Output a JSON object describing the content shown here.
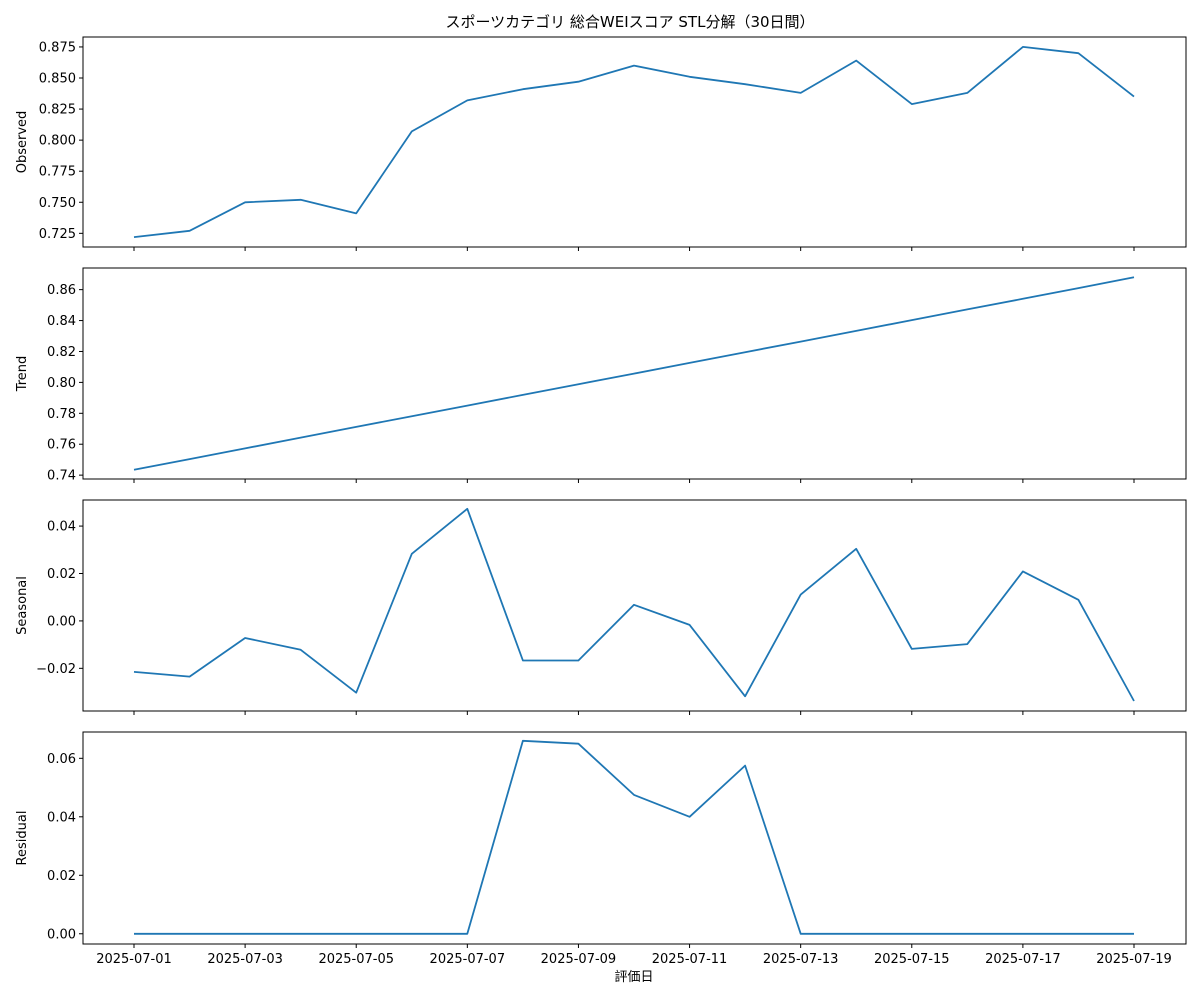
{
  "chart_data": {
    "type": "line",
    "title": "スポーツカテゴリ 総合WEIスコア STL分解（30日間）",
    "xlabel": "評価日",
    "line_color": "#1f77b4",
    "grid": false,
    "x": [
      "2025-07-01",
      "2025-07-02",
      "2025-07-03",
      "2025-07-04",
      "2025-07-05",
      "2025-07-06",
      "2025-07-07",
      "2025-07-08",
      "2025-07-09",
      "2025-07-10",
      "2025-07-11",
      "2025-07-12",
      "2025-07-13",
      "2025-07-14",
      "2025-07-15",
      "2025-07-16",
      "2025-07-17",
      "2025-07-18",
      "2025-07-19"
    ],
    "x_tick_labels": [
      "2025-07-01",
      "2025-07-03",
      "2025-07-05",
      "2025-07-07",
      "2025-07-09",
      "2025-07-11",
      "2025-07-13",
      "2025-07-15",
      "2025-07-17",
      "2025-07-19"
    ],
    "panels": [
      {
        "ylabel": "Observed",
        "ylim": [
          0.714,
          0.883
        ],
        "yticks": [
          0.725,
          0.75,
          0.775,
          0.8,
          0.825,
          0.85,
          0.875
        ],
        "ytick_labels": [
          "0.725",
          "0.750",
          "0.775",
          "0.800",
          "0.825",
          "0.850",
          "0.875"
        ],
        "values": [
          0.722,
          0.727,
          0.75,
          0.752,
          0.741,
          0.807,
          0.832,
          0.841,
          0.847,
          0.86,
          0.851,
          0.845,
          0.838,
          0.864,
          0.829,
          0.838,
          0.875,
          0.87,
          0.835
        ]
      },
      {
        "ylabel": "Trend",
        "ylim": [
          0.7375,
          0.874
        ],
        "yticks": [
          0.74,
          0.76,
          0.78,
          0.8,
          0.82,
          0.84,
          0.86
        ],
        "ytick_labels": [
          "0.74",
          "0.76",
          "0.78",
          "0.80",
          "0.82",
          "0.84",
          "0.86"
        ],
        "values": [
          0.7435,
          0.7504,
          0.7573,
          0.7643,
          0.7712,
          0.7781,
          0.785,
          0.7919,
          0.7988,
          0.8057,
          0.8126,
          0.8195,
          0.8264,
          0.8333,
          0.8403,
          0.8472,
          0.8541,
          0.861,
          0.868
        ]
      },
      {
        "ylabel": "Seasonal",
        "ylim": [
          -0.038,
          0.051
        ],
        "yticks": [
          -0.02,
          0.0,
          0.02,
          0.04
        ],
        "ytick_labels": [
          "−0.02",
          "0.00",
          "0.02",
          "0.04"
        ],
        "values": [
          -0.0215,
          -0.0235,
          -0.0072,
          -0.0122,
          -0.0303,
          0.0283,
          0.0473,
          -0.0167,
          -0.0167,
          0.0068,
          -0.0017,
          -0.0318,
          0.0111,
          0.0304,
          -0.0118,
          -0.0098,
          0.0209,
          0.0089,
          -0.0338
        ]
      },
      {
        "ylabel": "Residual",
        "ylim": [
          -0.0035,
          0.069
        ],
        "yticks": [
          0.0,
          0.02,
          0.04,
          0.06
        ],
        "ytick_labels": [
          "0.00",
          "0.02",
          "0.04",
          "0.06"
        ],
        "values": [
          0,
          0,
          0,
          0,
          0,
          0,
          0,
          0.066,
          0.065,
          0.0475,
          0.04,
          0.0575,
          0,
          0,
          0,
          0,
          0,
          0,
          0
        ]
      }
    ]
  }
}
